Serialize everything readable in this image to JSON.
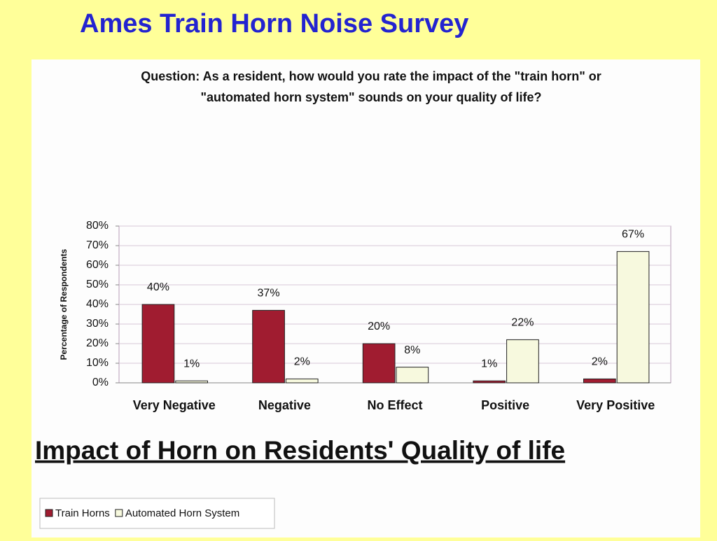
{
  "slide_title": "Ames Train Horn Noise Survey",
  "chart_data": {
    "type": "bar",
    "question": "Question: As a resident, how would you rate the impact of the \"train horn\" or \"automated horn system\" sounds on your quality of life?",
    "title": "Impact of Horn on Residents' Quality of life",
    "ylabel": "Percentage of Respondents",
    "categories": [
      "Very Negative",
      "Negative",
      "No Effect",
      "Positive",
      "Very Positive"
    ],
    "series": [
      {
        "name": "Train Horns",
        "color": "#a01c30",
        "values": [
          40,
          37,
          20,
          1,
          2
        ],
        "value_labels": [
          "40%",
          "37%",
          "20%",
          "1%",
          "2%"
        ]
      },
      {
        "name": "Automated Horn System",
        "color": "#f7f9de",
        "values": [
          1,
          2,
          8,
          22,
          67
        ],
        "value_labels": [
          "1%",
          "2%",
          "8%",
          "22%",
          "67%"
        ]
      }
    ],
    "ylim": [
      0,
      80
    ],
    "yticks": [
      {
        "value": 0,
        "label": "0%"
      },
      {
        "value": 10,
        "label": "10%"
      },
      {
        "value": 20,
        "label": "20%"
      },
      {
        "value": 30,
        "label": "30%"
      },
      {
        "value": 40,
        "label": "40%"
      },
      {
        "value": 50,
        "label": "50%"
      },
      {
        "value": 60,
        "label": "60%"
      },
      {
        "value": 70,
        "label": "70%"
      },
      {
        "value": 80,
        "label": "80%"
      }
    ],
    "grid": true,
    "legend": "bottom-left"
  }
}
